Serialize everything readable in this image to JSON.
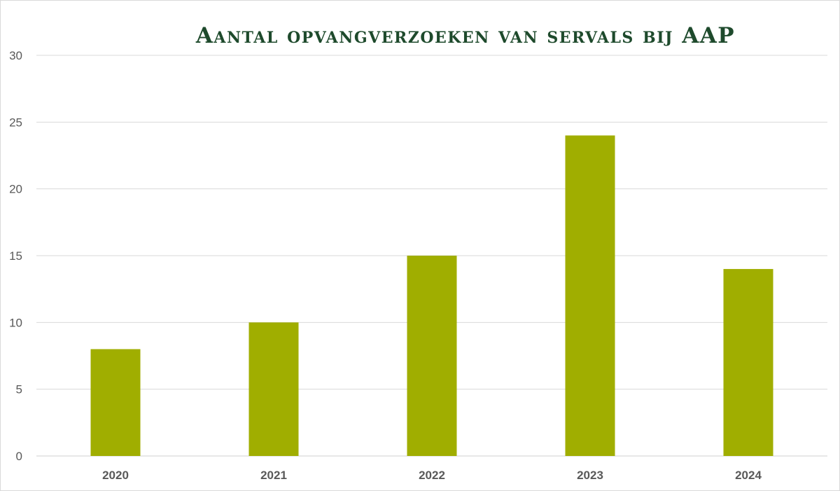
{
  "chart_data": {
    "type": "bar",
    "title": "Aantal opvangverzoeken van servals bij AAP",
    "categories": [
      "2020",
      "2021",
      "2022",
      "2023",
      "2024"
    ],
    "values": [
      8,
      10,
      15,
      24,
      14
    ],
    "ylim": [
      0,
      30
    ],
    "yticks": [
      0,
      5,
      10,
      15,
      20,
      25,
      30
    ],
    "grid": true,
    "legend": "none",
    "bar_color": "#a0ae00",
    "title_color": "#1e4a2c",
    "grid_color": "#d9d9d9",
    "axis_text_color": "#595959"
  }
}
